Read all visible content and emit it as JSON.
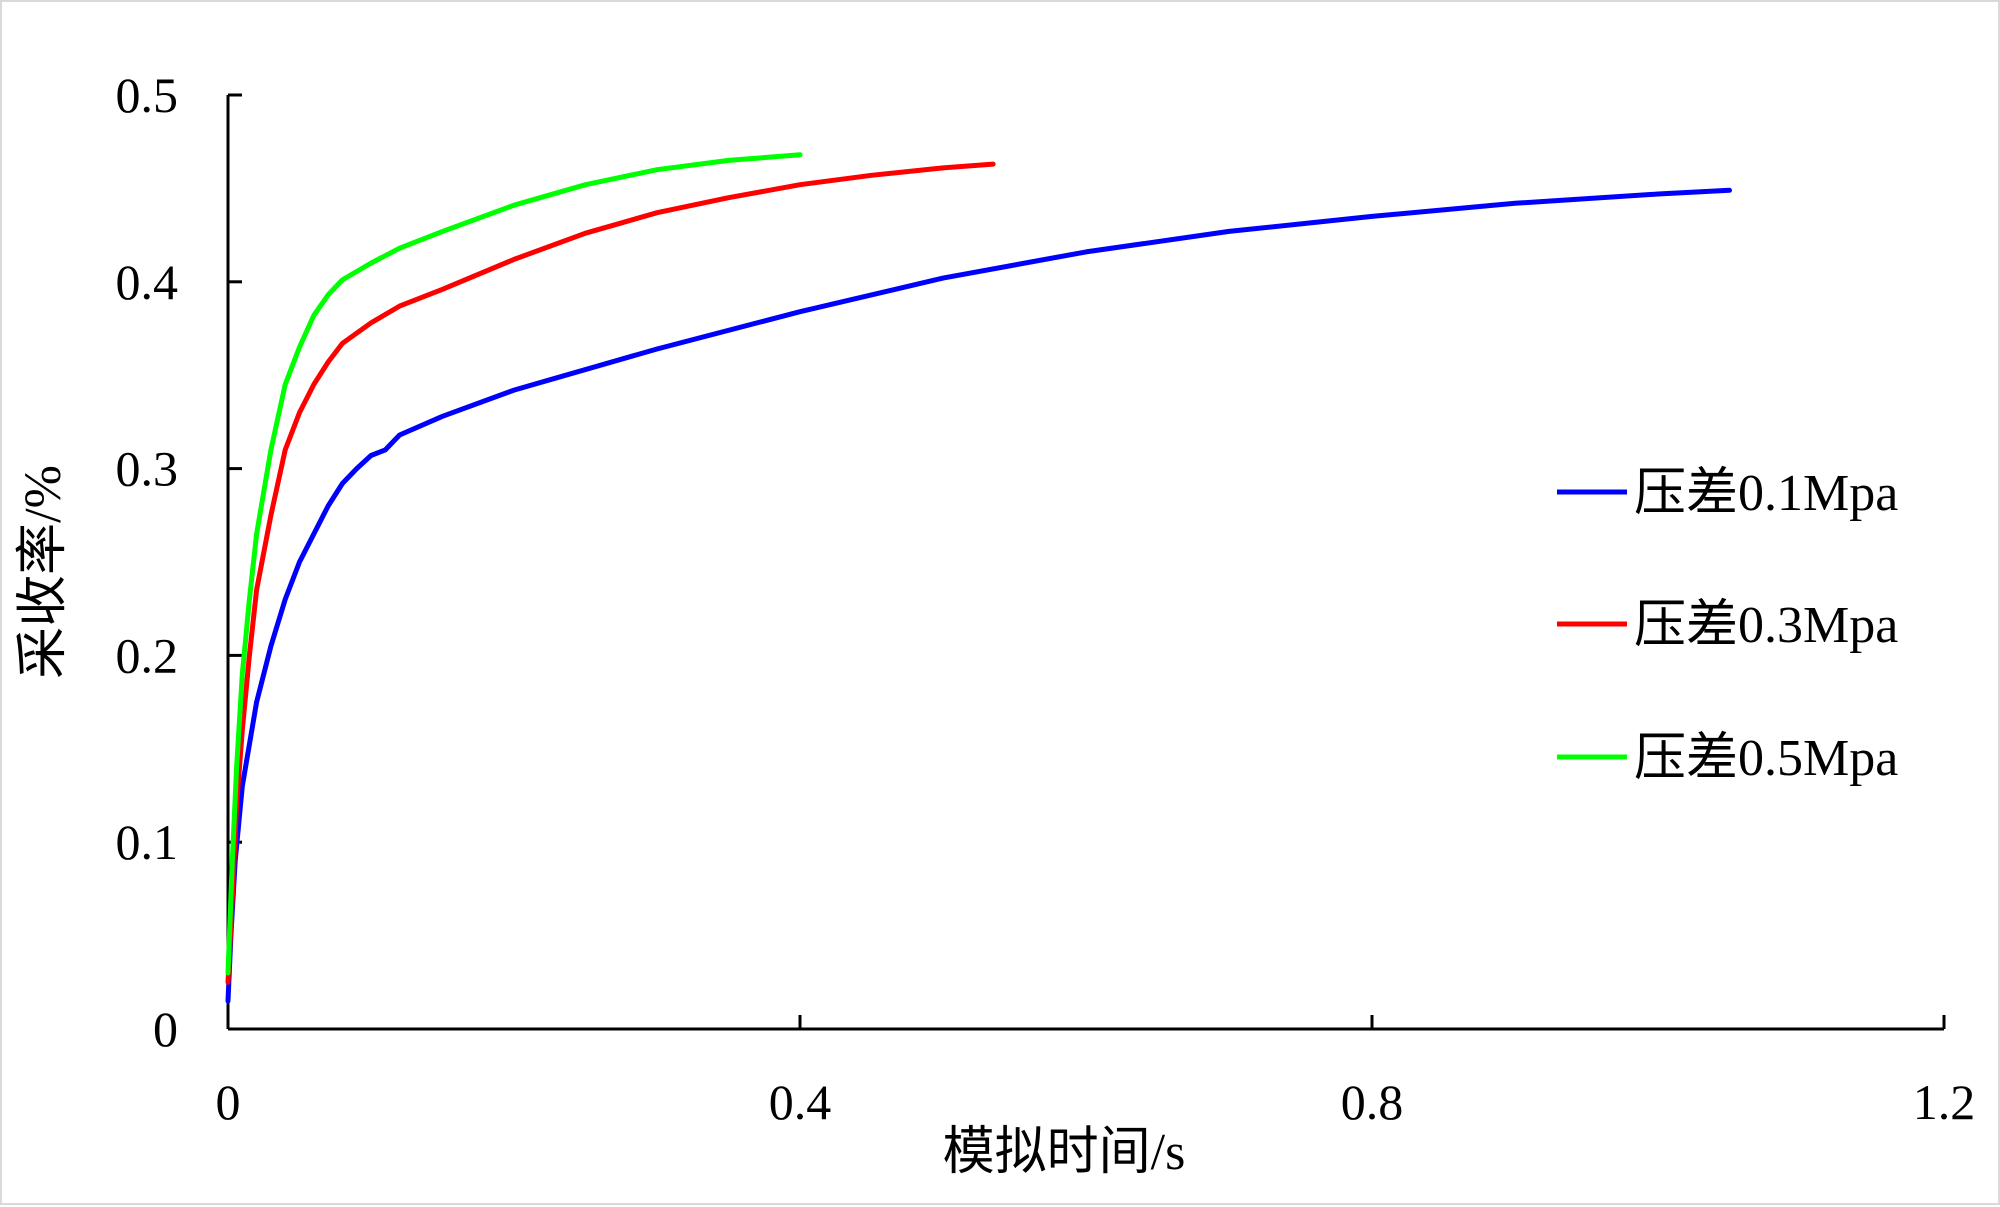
{
  "chart_data": {
    "type": "line",
    "xlabel": "模拟时间/s",
    "ylabel": "采收率/%",
    "xlim": [
      0,
      1.2
    ],
    "ylim": [
      0,
      0.5
    ],
    "x_ticks": [
      "0",
      "0.4",
      "0.8",
      "1.2"
    ],
    "y_ticks": [
      "0",
      "0.1",
      "0.2",
      "0.3",
      "0.4",
      "0.5"
    ],
    "grid": false,
    "legend_position": "right",
    "series": [
      {
        "name": "压差0.1Mpa",
        "color": "#0000ff",
        "x": [
          0,
          0.002,
          0.005,
          0.01,
          0.02,
          0.03,
          0.04,
          0.05,
          0.06,
          0.07,
          0.08,
          0.09,
          0.1,
          0.11,
          0.12,
          0.15,
          0.2,
          0.3,
          0.4,
          0.5,
          0.6,
          0.7,
          0.8,
          0.9,
          1.0,
          1.05
        ],
        "y": [
          0.015,
          0.05,
          0.09,
          0.13,
          0.175,
          0.205,
          0.23,
          0.25,
          0.265,
          0.28,
          0.292,
          0.3,
          0.307,
          0.31,
          0.318,
          0.328,
          0.342,
          0.364,
          0.384,
          0.402,
          0.416,
          0.427,
          0.435,
          0.442,
          0.447,
          0.449
        ]
      },
      {
        "name": "压差0.3Mpa",
        "color": "#ff0000",
        "x": [
          0,
          0.003,
          0.006,
          0.01,
          0.015,
          0.02,
          0.03,
          0.04,
          0.05,
          0.06,
          0.07,
          0.08,
          0.1,
          0.12,
          0.15,
          0.2,
          0.25,
          0.3,
          0.35,
          0.4,
          0.45,
          0.5,
          0.535
        ],
        "y": [
          0.025,
          0.07,
          0.12,
          0.16,
          0.2,
          0.235,
          0.275,
          0.31,
          0.33,
          0.345,
          0.357,
          0.367,
          0.378,
          0.387,
          0.396,
          0.412,
          0.426,
          0.437,
          0.445,
          0.452,
          0.457,
          0.461,
          0.463
        ]
      },
      {
        "name": "压差0.5Mpa",
        "color": "#00ff00",
        "x": [
          0,
          0.003,
          0.006,
          0.01,
          0.015,
          0.02,
          0.03,
          0.04,
          0.05,
          0.06,
          0.07,
          0.08,
          0.1,
          0.12,
          0.15,
          0.2,
          0.25,
          0.3,
          0.35,
          0.4
        ],
        "y": [
          0.03,
          0.09,
          0.14,
          0.19,
          0.23,
          0.265,
          0.31,
          0.345,
          0.365,
          0.382,
          0.393,
          0.401,
          0.41,
          0.418,
          0.427,
          0.441,
          0.452,
          0.46,
          0.465,
          0.468
        ]
      }
    ]
  }
}
